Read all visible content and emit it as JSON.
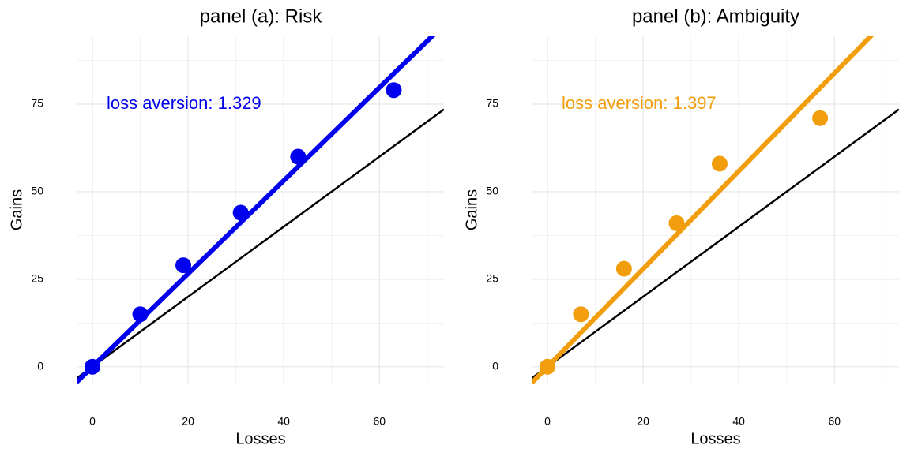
{
  "chart_data": [
    {
      "type": "scatter",
      "title": "panel (a): Risk",
      "x_label": "Losses",
      "y_label": "Gains",
      "x": [
        0,
        10,
        19,
        31,
        43,
        63
      ],
      "values": [
        0,
        15,
        29,
        44,
        60,
        79
      ],
      "color": "#0000ee",
      "fit_slope": 1.329,
      "reference_slope": 1,
      "annotation": "loss aversion: 1.329",
      "xlim": [
        -3.3,
        73.5
      ],
      "ylim": [
        -5,
        94.6
      ],
      "xticks": [
        0,
        20,
        40,
        60
      ],
      "yticks": [
        0,
        25,
        50,
        75
      ],
      "xminor": [
        10,
        30,
        50,
        70
      ],
      "yminor": [
        12.5,
        37.5,
        62.5,
        87.5
      ],
      "grid": true
    },
    {
      "type": "scatter",
      "title": "panel (b): Ambiguity",
      "x_label": "Losses",
      "y_label": "Gains",
      "x": [
        0,
        7,
        16,
        27,
        36,
        57
      ],
      "values": [
        0,
        15,
        28,
        41,
        58,
        71
      ],
      "color": "#f29e0c",
      "fit_slope": 1.397,
      "reference_slope": 1,
      "annotation": "loss aversion: 1.397",
      "xlim": [
        -3.3,
        73.5
      ],
      "ylim": [
        -5,
        94.6
      ],
      "xticks": [
        0,
        20,
        40,
        60
      ],
      "yticks": [
        0,
        25,
        50,
        75
      ],
      "xminor": [
        10,
        30,
        50,
        70
      ],
      "yminor": [
        12.5,
        37.5,
        62.5,
        87.5
      ],
      "grid": true
    }
  ]
}
